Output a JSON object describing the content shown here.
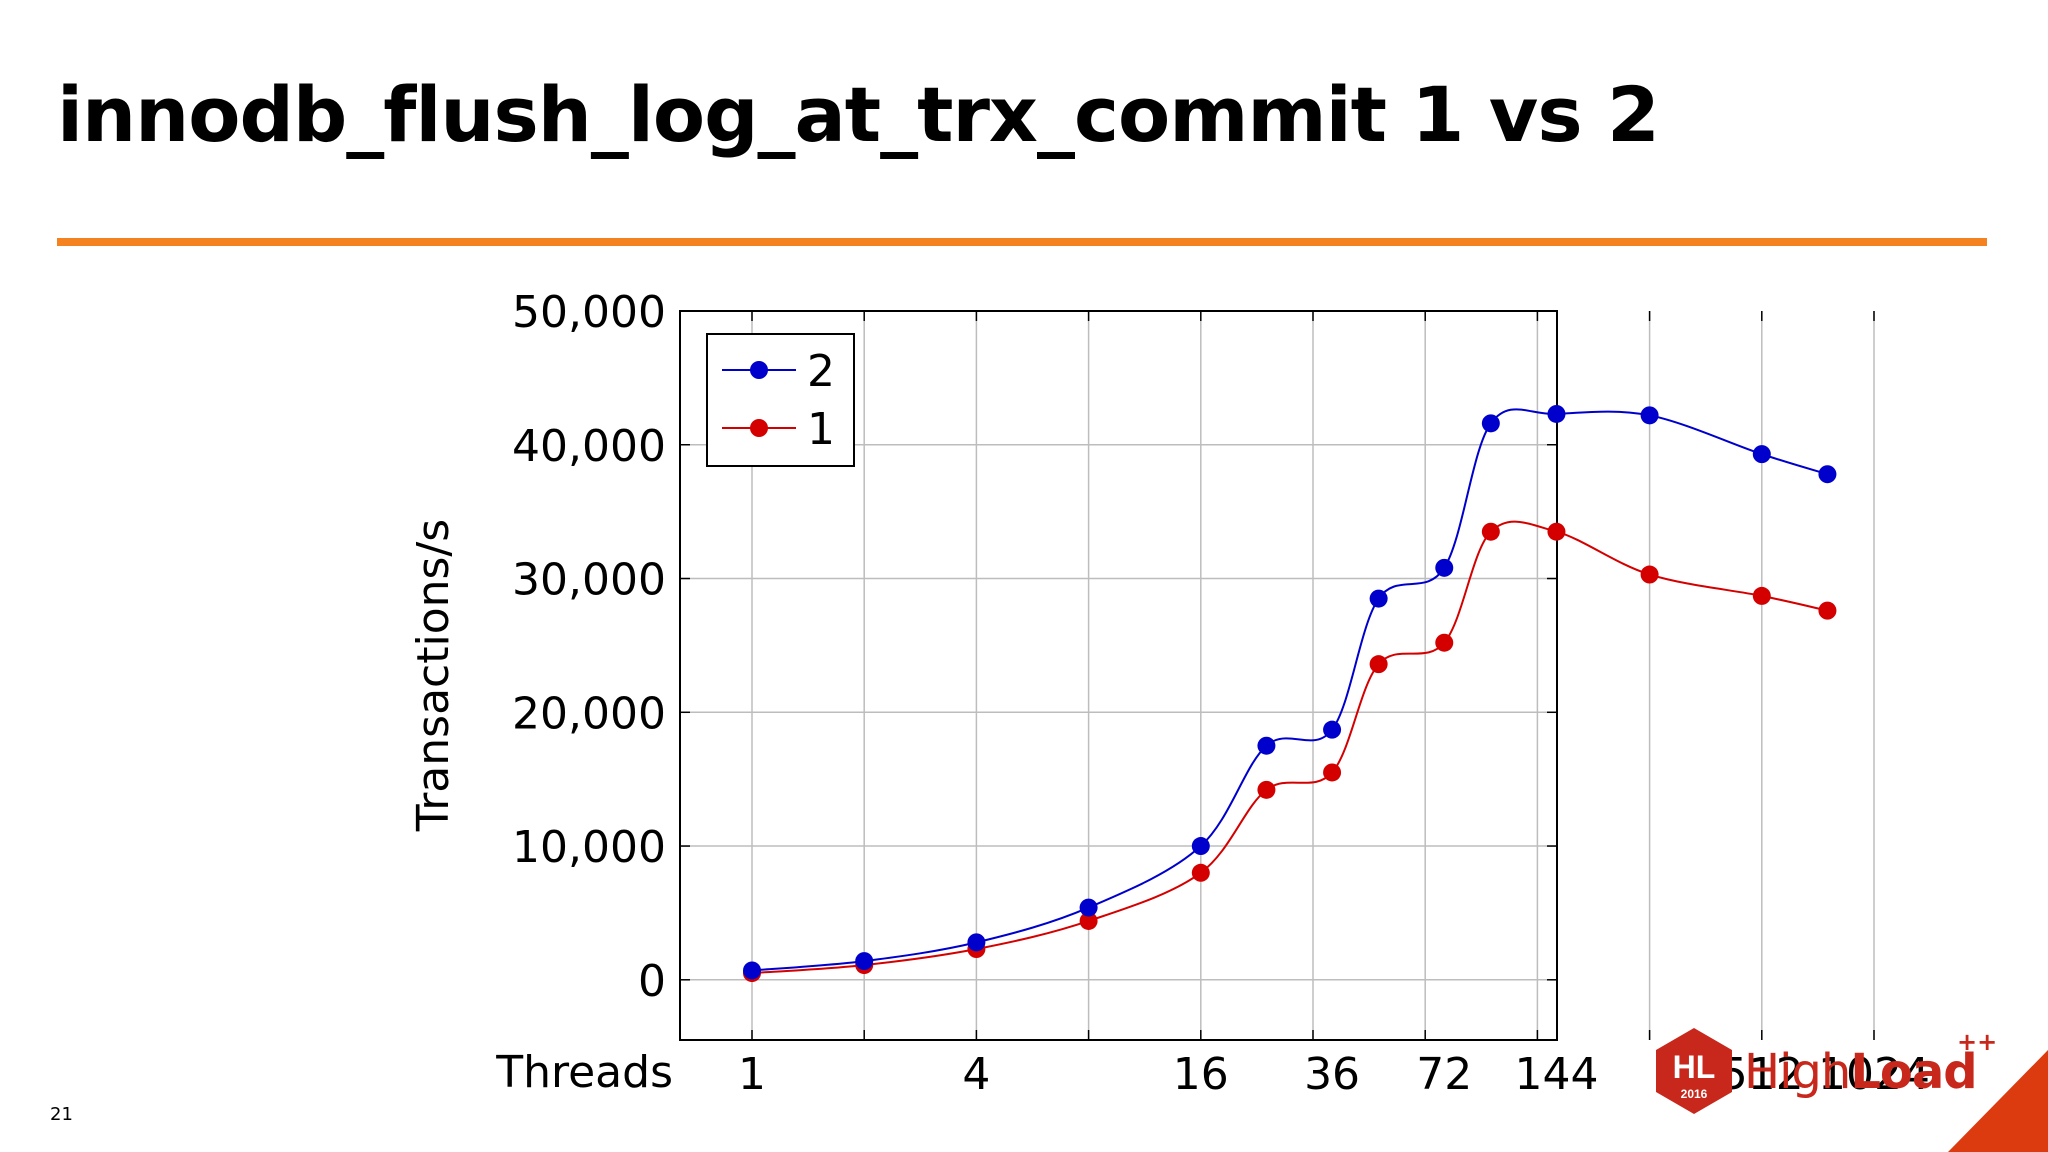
{
  "title": "innodb_flush_log_at_trx_commit 1 vs 2",
  "page_number": "21",
  "logo": {
    "badge_text": "HL",
    "badge_year": "2016",
    "brand_light": "High",
    "brand_bold": "Load",
    "brand_super": "++"
  },
  "colors": {
    "accent": "#f58220",
    "series_2": "#0000cc",
    "series_1": "#d40000",
    "logo": "#c8281c",
    "grid": "#bbbbbb"
  },
  "chart_data": {
    "type": "line",
    "title": "",
    "xlabel": "Threads",
    "ylabel": "Transactions/s",
    "x_scale": "log2",
    "x_ticks": [
      1,
      4,
      16,
      36,
      72,
      144,
      512,
      1024
    ],
    "x_tick_labels": [
      "1",
      "4",
      "16",
      "36",
      "72",
      "144",
      "512",
      "1024"
    ],
    "y_ticks": [
      0,
      10000,
      20000,
      30000,
      40000,
      50000
    ],
    "y_tick_labels": [
      "0",
      "10,000",
      "20,000",
      "30,000",
      "40,000",
      "50,000"
    ],
    "xlim_label": [
      1,
      1024
    ],
    "ylim": [
      -4500,
      50000
    ],
    "grid": true,
    "legend_position": "top-left",
    "series": [
      {
        "name": "2",
        "color": "#0000cc",
        "x": [
          1,
          2,
          4,
          8,
          16,
          24,
          36,
          48,
          72,
          96,
          144,
          256,
          512,
          768
        ],
        "y": [
          700,
          1400,
          2800,
          5400,
          10000,
          17500,
          18700,
          28500,
          30800,
          41600,
          42300,
          42200,
          39300,
          37800
        ]
      },
      {
        "name": "1",
        "color": "#d40000",
        "x": [
          1,
          2,
          4,
          8,
          16,
          24,
          36,
          48,
          72,
          96,
          144,
          256,
          512,
          768
        ],
        "y": [
          500,
          1100,
          2300,
          4400,
          8000,
          14200,
          15500,
          23600,
          25200,
          33500,
          33500,
          30300,
          28700,
          27600
        ]
      }
    ]
  }
}
